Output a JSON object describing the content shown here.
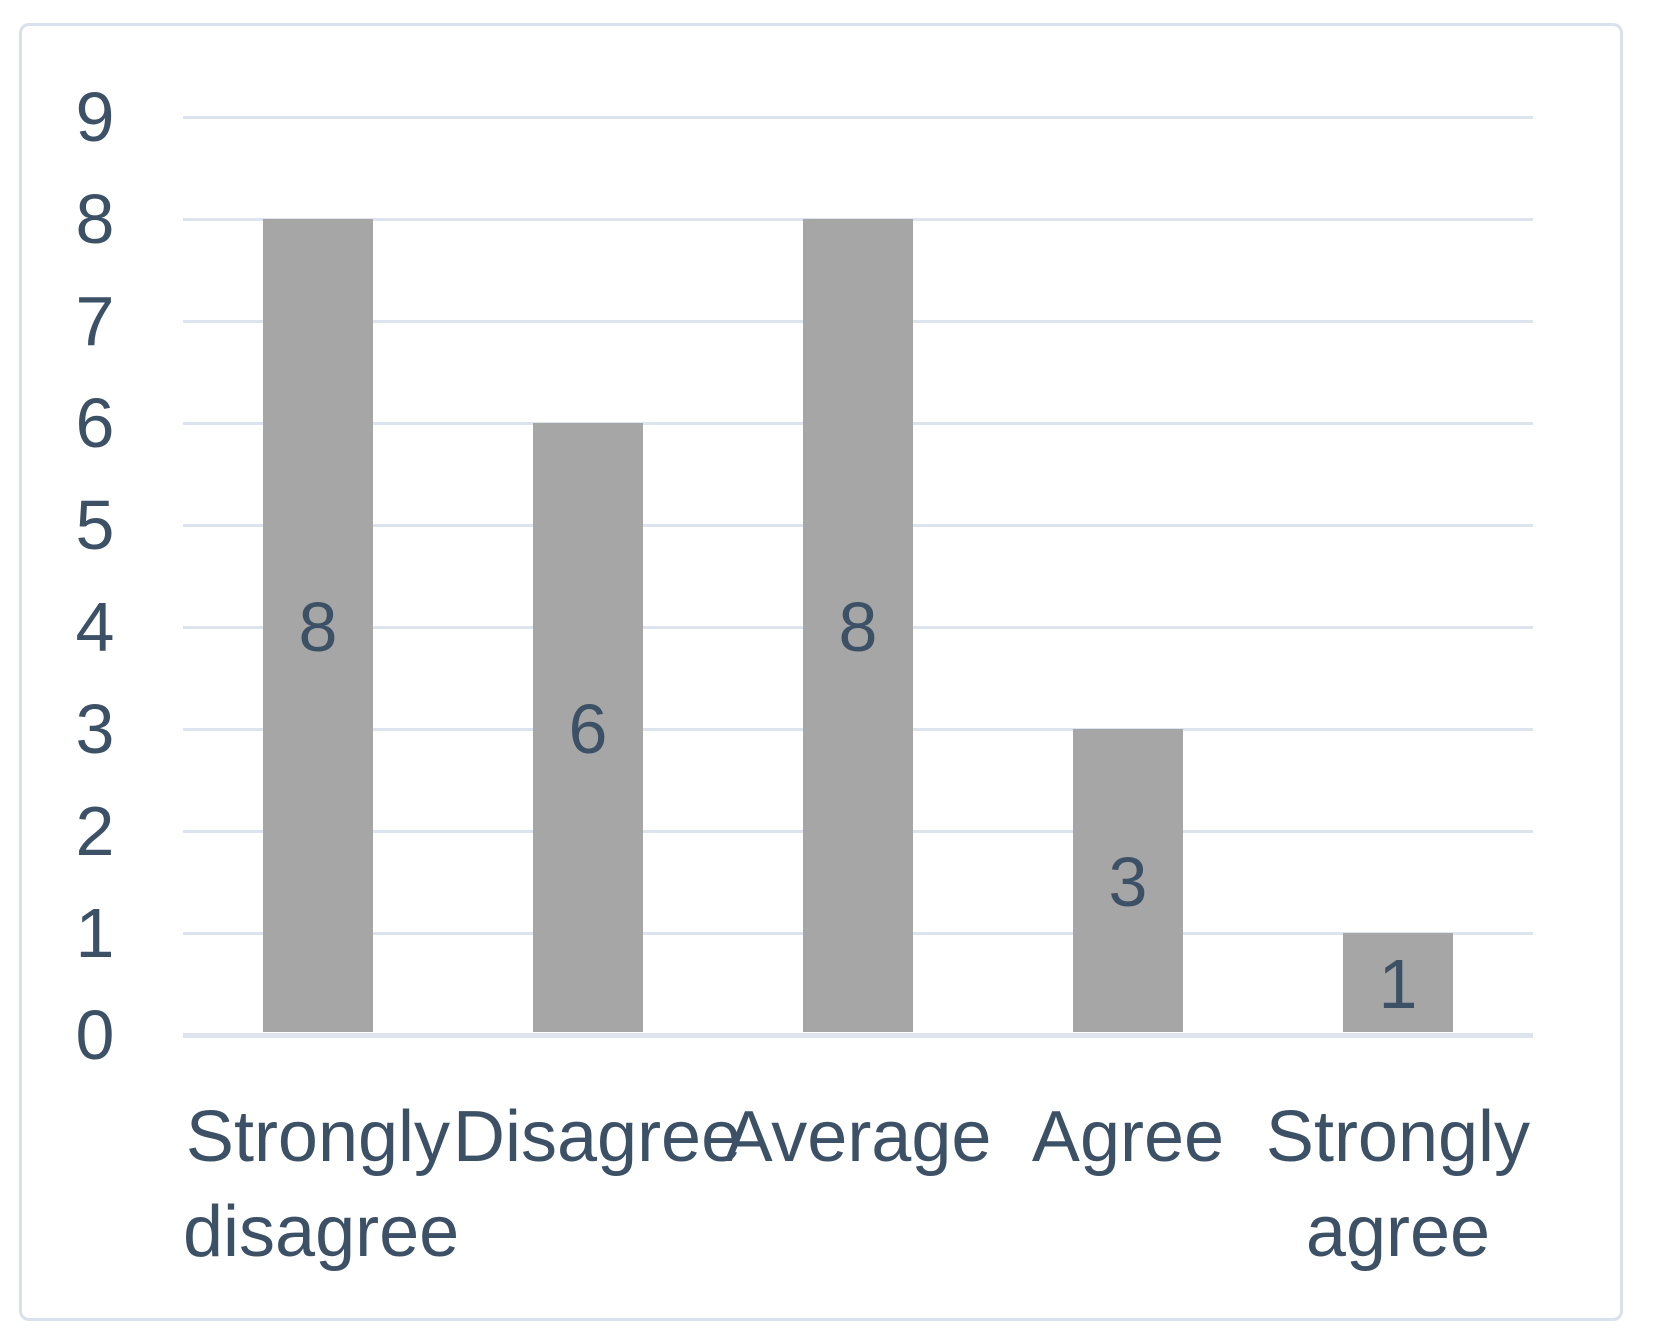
{
  "chart_data": {
    "type": "bar",
    "categories": [
      "Strongly disagree",
      "Disagree",
      "Average",
      "Agree",
      "Strongly agree"
    ],
    "category_lines": [
      [
        "Strongly",
        "disagree"
      ],
      [
        "Disagree"
      ],
      [
        "Average"
      ],
      [
        "Agree"
      ],
      [
        "Strongly",
        "agree"
      ]
    ],
    "values": [
      8,
      6,
      8,
      3,
      1
    ],
    "data_labels": [
      "8",
      "6",
      "8",
      "3",
      "1"
    ],
    "title": "",
    "xlabel": "",
    "ylabel": "",
    "ylim": [
      0,
      9
    ],
    "yticks": [
      0,
      1,
      2,
      3,
      4,
      5,
      6,
      7,
      8,
      9
    ],
    "grid": true,
    "legend": false,
    "colors": {
      "bar": "#a6a6a6",
      "grid": "#dde4ee",
      "axis_text": "#3d5166",
      "data_label": "#3d5166",
      "frame_border": "#d9e1ec",
      "background": "#ffffff"
    }
  }
}
